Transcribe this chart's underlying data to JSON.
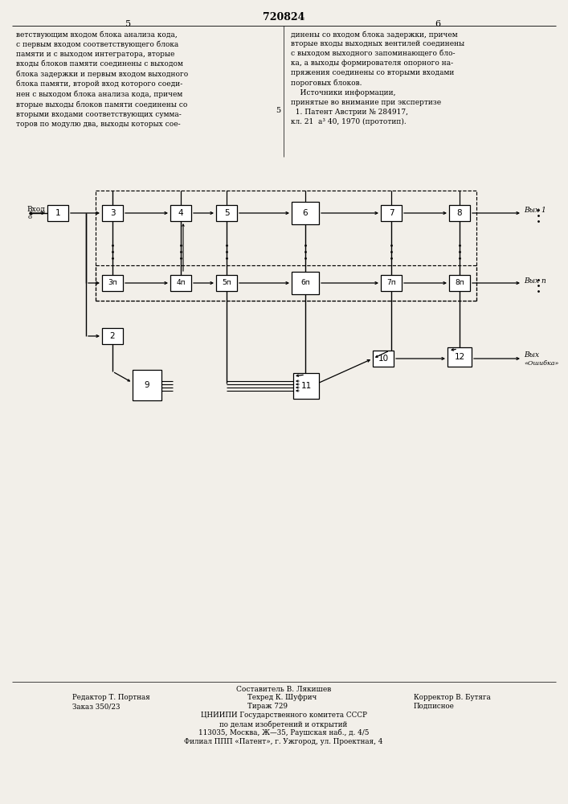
{
  "title": "720824",
  "page_left": "5",
  "page_right": "6",
  "text_left": "ветствующим входом блока анализа кода,\nс первым входом соответствующего блока\nпамяти и с выходом интегратора, вторые\nвходы блоков памяти соединены с выходом\nблока задержки и первым входом выходного\nблока памяти, второй вход которого соеди-\nнен с выходом блока анализа кода, причем\nвторые выходы блоков памяти соединены со\nвторыми входами соответствующих сумма-\nторов по модулю два, выходы которых сое-",
  "text_right": "динены со входом блока задержки, причем\nвторые входы выходных вентилей соединены\nс выходом выходного запоминающего бло-\nка, а выходы формирователя опорного на-\nпряжения соединены со вторыми входами\nпороговых блоков.\n    Источники информации,\nпринятые во внимание при экспертизе\n  1. Патент Австрии № 284917,\nкл. 21  а³ 40, 1970 (прототип).",
  "footer_line1": "Составитель В. Лякишев",
  "footer_line2_left": "Редактор Т. Портная",
  "footer_line2_mid": "Техред К. Шуфрич",
  "footer_line2_right": "Корректор В. Бутяга",
  "footer_line3_left": "Заказ 350/23",
  "footer_line3_mid": "Тираж 729",
  "footer_line3_right": "Подписное",
  "footer_org1": "ЦНИИПИ Государственного комитета СССР",
  "footer_org2": "по делам изобретений и открытий",
  "footer_org3": "113035, Москва, Ж—35, Раушская наб., д. 4/5",
  "footer_org4": "Филиал ППП «Патент», г. Ужгород, ул. Проектная, 4",
  "bg_color": "#f2efe9"
}
